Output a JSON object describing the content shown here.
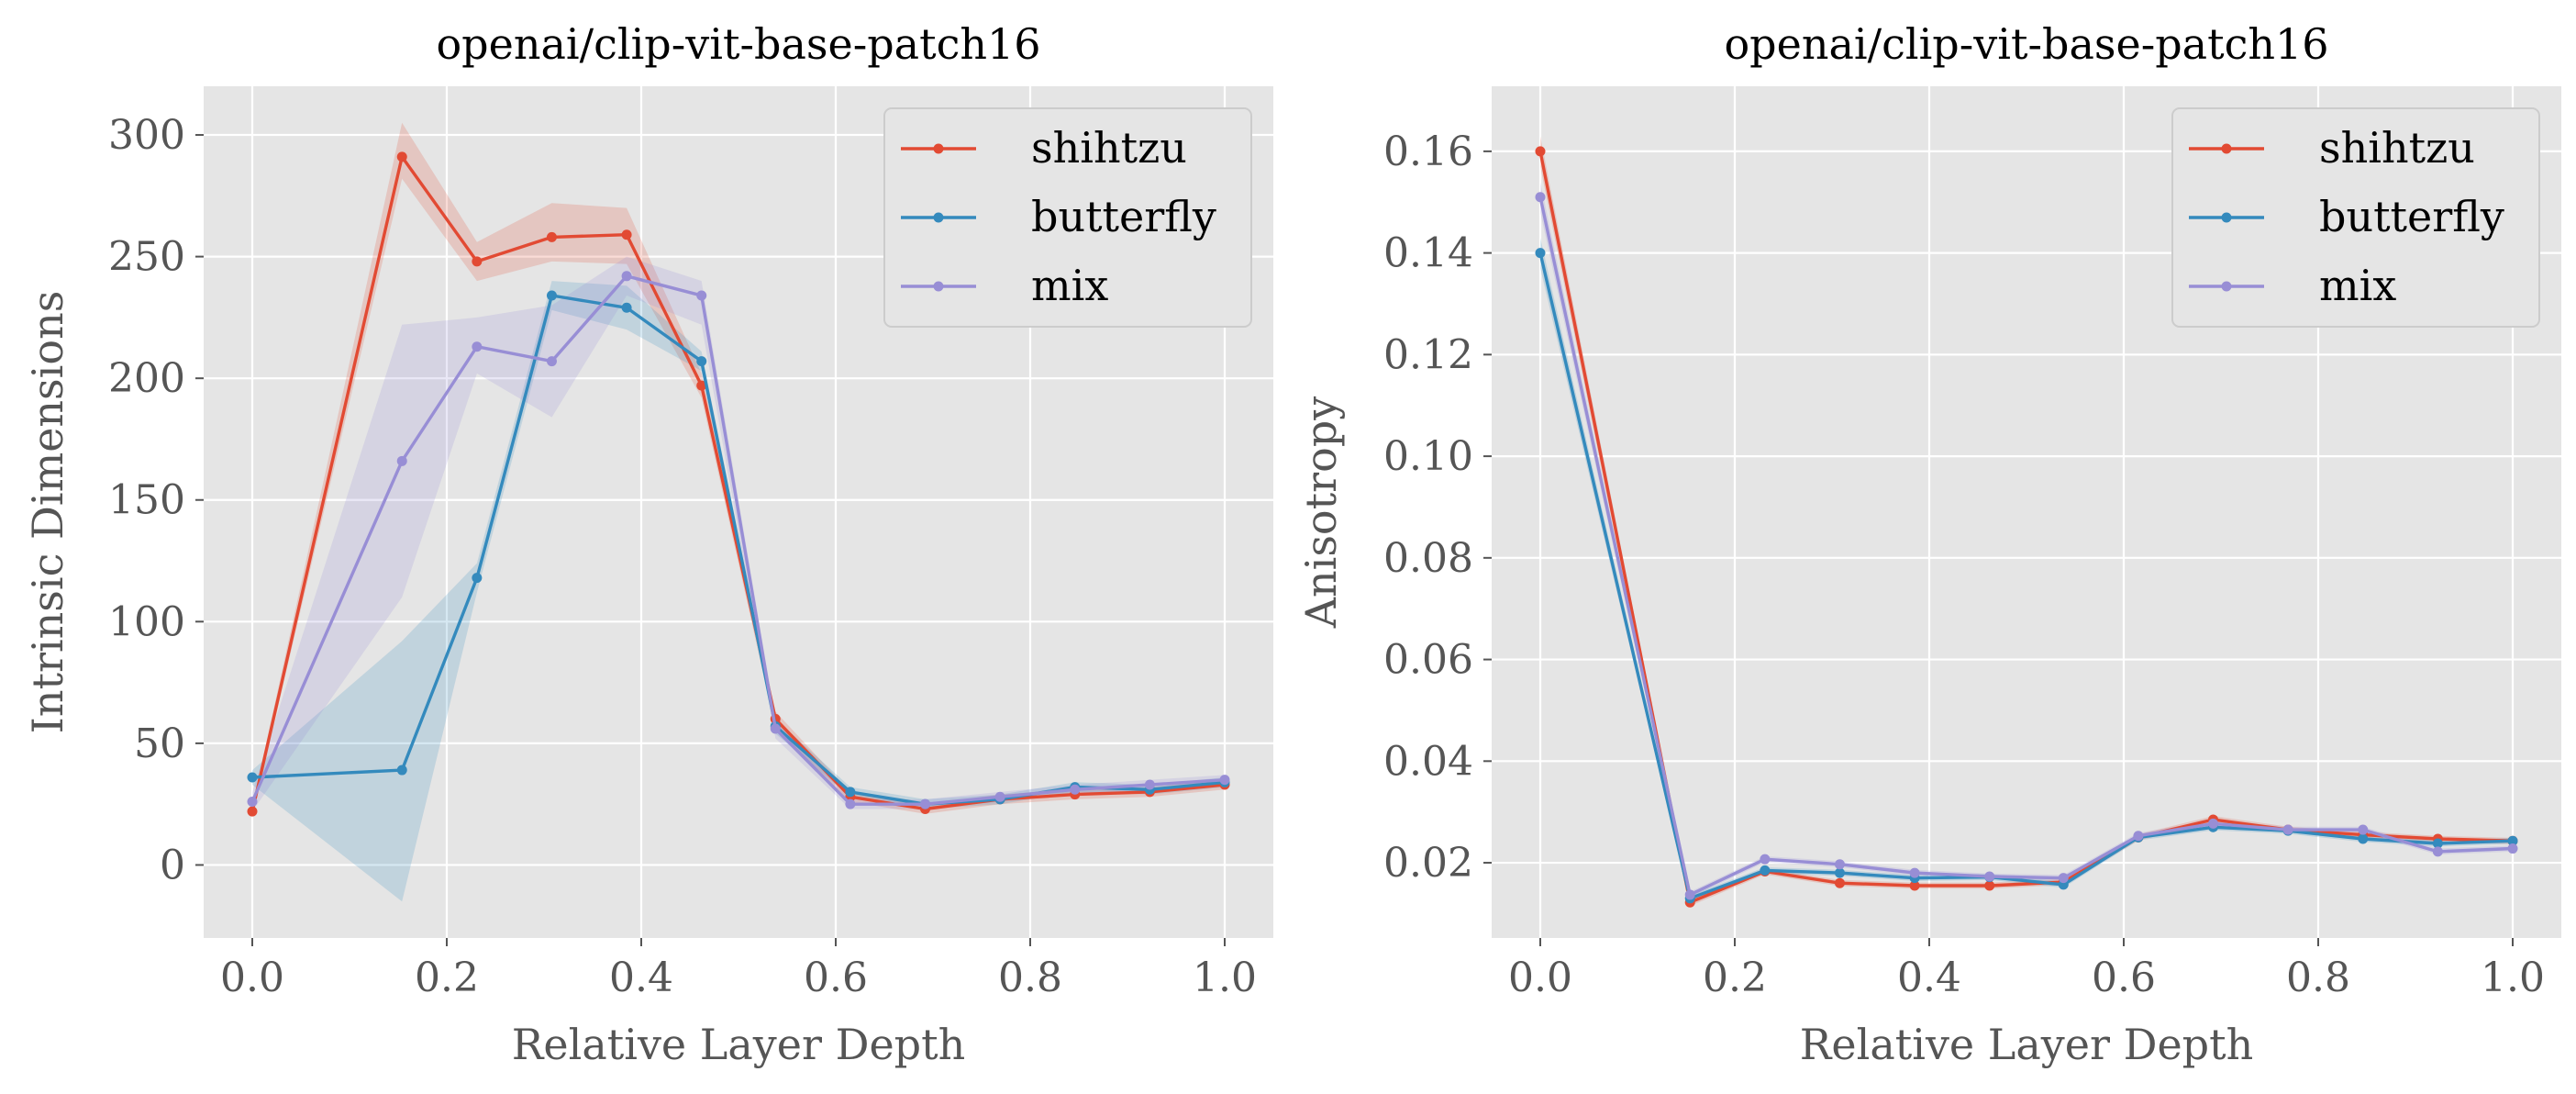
{
  "chart_data": [
    {
      "type": "line",
      "title": "openai/clip-vit-base-patch16",
      "xlabel": "Relative Layer Depth",
      "ylabel": "Intrinsic Dimensions",
      "xlim": [
        -0.05,
        1.05
      ],
      "ylim": [
        -30,
        320
      ],
      "xticks": [
        0.0,
        0.2,
        0.4,
        0.6,
        0.8,
        1.0
      ],
      "xtick_labels": [
        "0.0",
        "0.2",
        "0.4",
        "0.6",
        "0.8",
        "1.0"
      ],
      "yticks": [
        0,
        50,
        100,
        150,
        200,
        250,
        300
      ],
      "ytick_labels": [
        "0",
        "50",
        "100",
        "150",
        "200",
        "250",
        "300"
      ],
      "grid": true,
      "legend_position": "top-right",
      "x": [
        0.0,
        0.154,
        0.231,
        0.308,
        0.385,
        0.462,
        0.538,
        0.615,
        0.692,
        0.769,
        0.846,
        0.923,
        1.0
      ],
      "series": [
        {
          "name": "shihtzu",
          "color": "#E24A33",
          "values": [
            22,
            291,
            248,
            258,
            259,
            197,
            60,
            28,
            23,
            27,
            29,
            30,
            33
          ],
          "lower": [
            20,
            282,
            240,
            248,
            247,
            192,
            56,
            26,
            21,
            25,
            27,
            28,
            31
          ],
          "upper": [
            24,
            305,
            256,
            272,
            270,
            202,
            63,
            30,
            25,
            29,
            31,
            32,
            35
          ]
        },
        {
          "name": "butterfly",
          "color": "#348ABD",
          "values": [
            36,
            39,
            118,
            234,
            229,
            207,
            57,
            30,
            25,
            27,
            32,
            31,
            34
          ],
          "lower": [
            33,
            -15,
            112,
            228,
            220,
            203,
            54,
            28,
            23,
            25,
            30,
            29,
            32
          ],
          "upper": [
            39,
            92,
            124,
            240,
            238,
            211,
            60,
            32,
            27,
            29,
            34,
            33,
            36
          ]
        },
        {
          "name": "mix",
          "color": "#988ED5",
          "values": [
            26,
            166,
            213,
            207,
            242,
            234,
            56,
            25,
            25,
            28,
            31,
            33,
            35
          ],
          "lower": [
            22,
            110,
            202,
            184,
            234,
            222,
            52,
            23,
            23,
            26,
            29,
            31,
            33
          ],
          "upper": [
            30,
            222,
            225,
            230,
            250,
            240,
            60,
            27,
            27,
            30,
            33,
            35,
            37
          ]
        }
      ]
    },
    {
      "type": "line",
      "title": "openai/clip-vit-base-patch16",
      "xlabel": "Relative Layer Depth",
      "ylabel": "Anisotropy",
      "xlim": [
        -0.05,
        1.05
      ],
      "ylim": [
        0.0052,
        0.1728
      ],
      "xticks": [
        0.0,
        0.2,
        0.4,
        0.6,
        0.8,
        1.0
      ],
      "xtick_labels": [
        "0.0",
        "0.2",
        "0.4",
        "0.6",
        "0.8",
        "1.0"
      ],
      "yticks": [
        0.02,
        0.04,
        0.06,
        0.08,
        0.1,
        0.12,
        0.14,
        0.16
      ],
      "ytick_labels": [
        "0.02",
        "0.04",
        "0.06",
        "0.08",
        "0.10",
        "0.12",
        "0.14",
        "0.16"
      ],
      "grid": true,
      "legend_position": "top-right",
      "x": [
        0.0,
        0.154,
        0.231,
        0.308,
        0.385,
        0.462,
        0.538,
        0.615,
        0.692,
        0.769,
        0.846,
        0.923,
        1.0
      ],
      "series": [
        {
          "name": "shihtzu",
          "color": "#E24A33",
          "values": [
            0.16,
            0.0122,
            0.0183,
            0.016,
            0.0155,
            0.0155,
            0.0162,
            0.025,
            0.0285,
            0.0265,
            0.0255,
            0.0247,
            0.0243
          ],
          "lower": [
            0.157,
            0.0115,
            0.0177,
            0.0154,
            0.0149,
            0.0149,
            0.0156,
            0.0244,
            0.0278,
            0.0259,
            0.0249,
            0.0241,
            0.0237
          ],
          "upper": [
            0.163,
            0.0129,
            0.0189,
            0.0166,
            0.0161,
            0.0161,
            0.0168,
            0.0256,
            0.0292,
            0.0271,
            0.0261,
            0.0253,
            0.0249
          ]
        },
        {
          "name": "butterfly",
          "color": "#348ABD",
          "values": [
            0.14,
            0.013,
            0.0185,
            0.018,
            0.017,
            0.0172,
            0.0157,
            0.025,
            0.027,
            0.0263,
            0.0247,
            0.0238,
            0.0243
          ],
          "lower": [
            0.137,
            0.0124,
            0.0179,
            0.0174,
            0.0164,
            0.0166,
            0.0151,
            0.0244,
            0.0264,
            0.0257,
            0.0241,
            0.0232,
            0.0237
          ],
          "upper": [
            0.143,
            0.0136,
            0.0191,
            0.0186,
            0.0176,
            0.0178,
            0.0163,
            0.0256,
            0.0276,
            0.0269,
            0.0253,
            0.0244,
            0.0249
          ]
        },
        {
          "name": "mix",
          "color": "#988ED5",
          "values": [
            0.151,
            0.0137,
            0.0207,
            0.0197,
            0.018,
            0.0173,
            0.017,
            0.0253,
            0.0277,
            0.0265,
            0.0265,
            0.0222,
            0.0228
          ],
          "lower": [
            0.148,
            0.0131,
            0.0201,
            0.0191,
            0.0174,
            0.0167,
            0.0164,
            0.0247,
            0.0271,
            0.0259,
            0.0259,
            0.0216,
            0.0222
          ],
          "upper": [
            0.154,
            0.0143,
            0.0213,
            0.0203,
            0.0186,
            0.0179,
            0.0176,
            0.0259,
            0.0283,
            0.0271,
            0.0271,
            0.0228,
            0.0234
          ]
        }
      ]
    }
  ]
}
